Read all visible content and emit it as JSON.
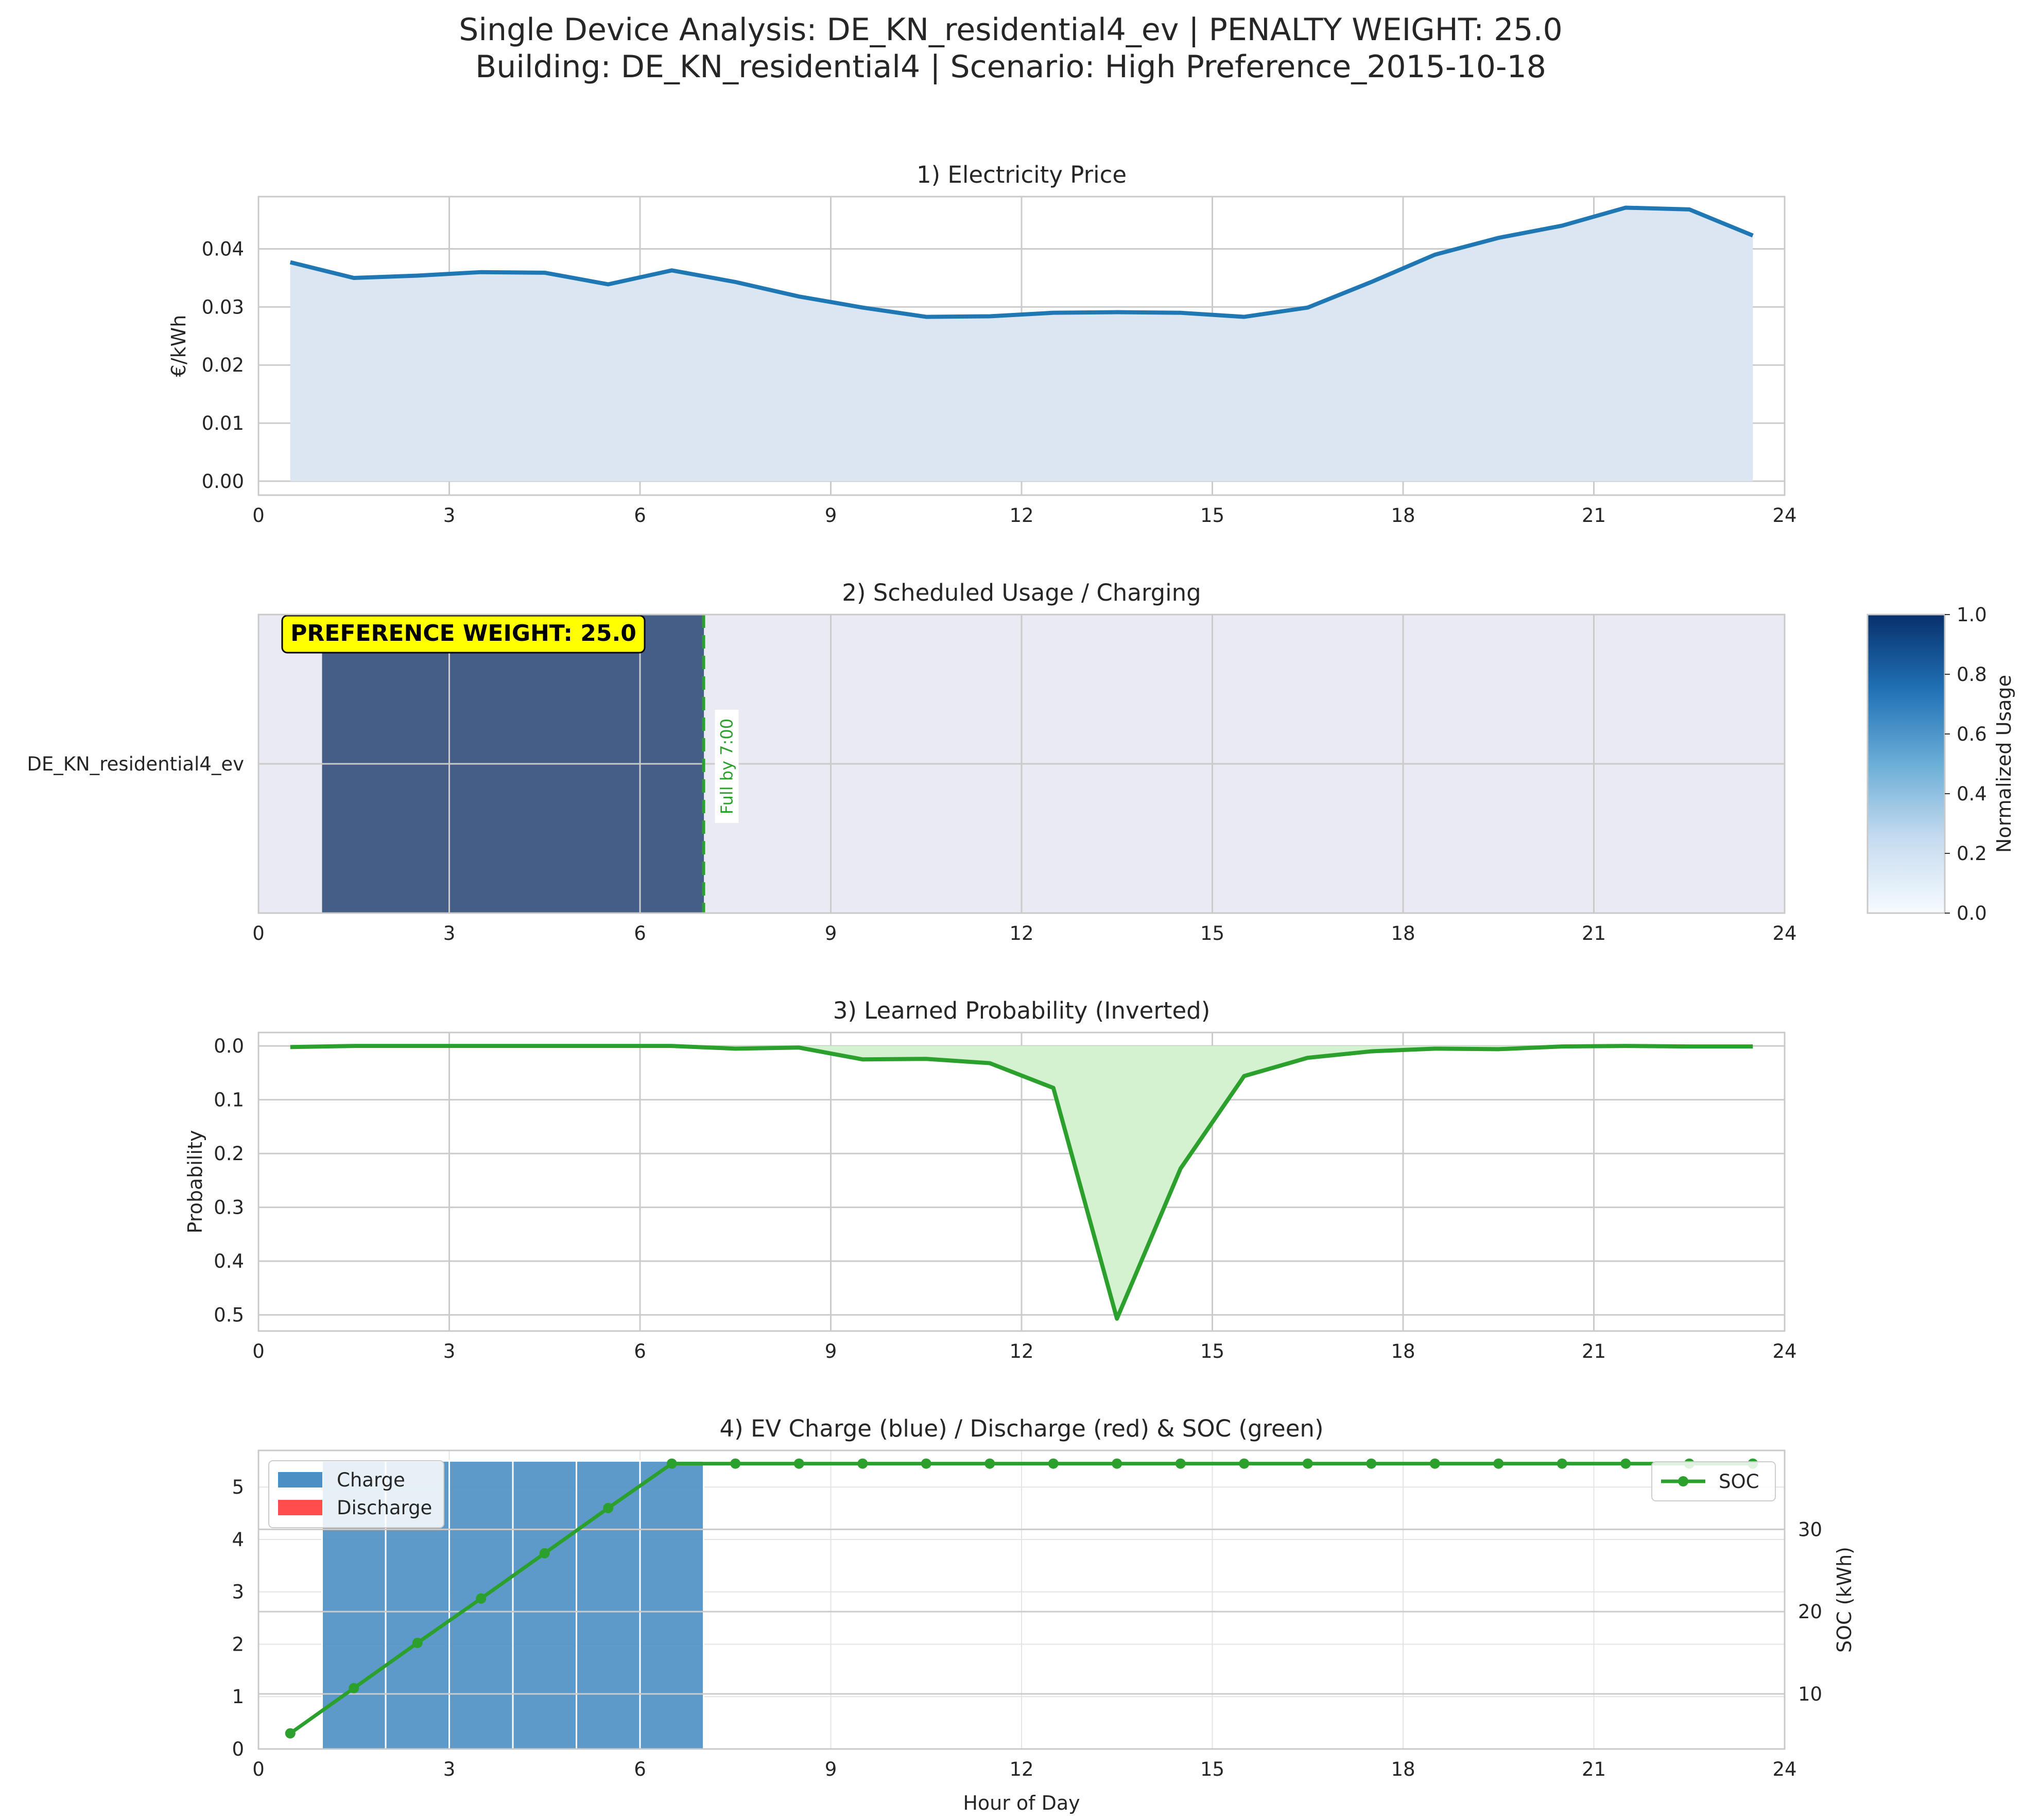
{
  "figure": {
    "title_line1": "Single Device Analysis: DE_KN_residential4_ev | PENALTY WEIGHT: 25.0",
    "title_line2": "Building: DE_KN_residential4 | Scenario: High Preference_2015-10-18"
  },
  "colors": {
    "price": "#1f77b4",
    "price_fill": "#dce6f2",
    "usage": "#445e87",
    "prob": "#2ca02c",
    "prob_fill": "#d4f1d0",
    "charge": "#4b8fc4",
    "discharge": "#ff4d4d",
    "soc": "#2ca02c",
    "panel_bg": "#eaeaf2",
    "badge_bg": "#ffff00"
  },
  "chart_data": [
    {
      "type": "area",
      "title": "1) Electricity Price",
      "xlabel": "",
      "ylabel": "€/kWh",
      "xlim": [
        0,
        24
      ],
      "ylim": [
        -0.0024,
        0.049
      ],
      "xticks": [
        "0",
        "3",
        "6",
        "9",
        "12",
        "15",
        "18",
        "21",
        "24"
      ],
      "yticks": [
        "0.00",
        "0.01",
        "0.02",
        "0.03",
        "0.04"
      ],
      "grid": true,
      "x": [
        0.5,
        1.5,
        2.5,
        3.5,
        4.5,
        5.5,
        6.5,
        7.5,
        8.5,
        9.5,
        10.5,
        11.5,
        12.5,
        13.5,
        14.5,
        15.5,
        16.5,
        17.5,
        18.5,
        19.5,
        20.5,
        21.5,
        22.5,
        23.5
      ],
      "values": [
        0.0377,
        0.035,
        0.0354,
        0.036,
        0.0359,
        0.0339,
        0.0363,
        0.0343,
        0.0318,
        0.0299,
        0.0283,
        0.0284,
        0.029,
        0.0291,
        0.029,
        0.0283,
        0.0299,
        0.0343,
        0.039,
        0.0419,
        0.044,
        0.0471,
        0.0468,
        0.0423
      ]
    },
    {
      "type": "heatmap",
      "title": "2) Scheduled Usage / Charging",
      "xlim": [
        0,
        24
      ],
      "xticks": [
        "0",
        "3",
        "6",
        "9",
        "12",
        "15",
        "18",
        "21",
        "24"
      ],
      "row_label": "DE_KN_residential4_ev",
      "grid": true,
      "x": [
        0.5,
        1.5,
        2.5,
        3.5,
        4.5,
        5.5,
        6.5,
        7.5,
        8.5,
        9.5,
        10.5,
        11.5,
        12.5,
        13.5,
        14.5,
        15.5,
        16.5,
        17.5,
        18.5,
        19.5,
        20.5,
        21.5,
        22.5,
        23.5
      ],
      "values": [
        0,
        0.8,
        0.8,
        0.8,
        0.8,
        0.8,
        0.8,
        0,
        0,
        0,
        0,
        0,
        0,
        0,
        0,
        0,
        0,
        0,
        0,
        0,
        0,
        0,
        0,
        0
      ],
      "badge": "PREFERENCE WEIGHT: 25.0",
      "deadline_hour": 7,
      "deadline_label": "Full by 7:00",
      "colorbar": {
        "label": "Normalized Usage",
        "range": [
          0,
          1
        ],
        "ticks": [
          "0.0",
          "0.2",
          "0.4",
          "0.6",
          "0.8",
          "1.0"
        ]
      }
    },
    {
      "type": "area",
      "title": "3) Learned Probability (Inverted)",
      "xlabel": "",
      "ylabel": "Probability",
      "xlim": [
        0,
        24
      ],
      "ylim": [
        0.53,
        -0.025
      ],
      "inverted_y": true,
      "xticks": [
        "0",
        "3",
        "6",
        "9",
        "12",
        "15",
        "18",
        "21",
        "24"
      ],
      "yticks": [
        "0.0",
        "0.1",
        "0.2",
        "0.3",
        "0.4",
        "0.5"
      ],
      "grid": true,
      "x": [
        0.5,
        1.5,
        2.5,
        3.5,
        4.5,
        5.5,
        6.5,
        7.5,
        8.5,
        9.5,
        10.5,
        11.5,
        12.5,
        13.5,
        14.5,
        15.5,
        16.5,
        17.5,
        18.5,
        19.5,
        20.5,
        21.5,
        22.5,
        23.5
      ],
      "values": [
        0.002,
        0.0,
        0.0,
        0.0,
        0.0,
        0.0,
        0.0,
        0.005,
        0.003,
        0.025,
        0.024,
        0.032,
        0.078,
        0.507,
        0.228,
        0.056,
        0.022,
        0.01,
        0.005,
        0.006,
        0.001,
        0.0,
        0.001,
        0.001
      ]
    },
    {
      "type": "bar",
      "title": "4) EV Charge (blue) / Discharge (red) & SOC (green)",
      "xlabel": "Hour of Day",
      "ylabel": "",
      "y2label": "SOC (kWh)",
      "xlim": [
        0,
        24
      ],
      "ylim": [
        0,
        5.7
      ],
      "y2lim": [
        3.3,
        39.6
      ],
      "xticks": [
        "0",
        "3",
        "6",
        "9",
        "12",
        "15",
        "18",
        "21",
        "24"
      ],
      "yticks": [
        "0",
        "1",
        "2",
        "3",
        "4",
        "5"
      ],
      "y2ticks": [
        "10",
        "20",
        "30"
      ],
      "grid": true,
      "legend_left": {
        "position": "upper-left",
        "items": [
          "Charge",
          "Discharge"
        ]
      },
      "legend_right": {
        "position": "upper-right",
        "items": [
          "SOC"
        ]
      },
      "x": [
        0.5,
        1.5,
        2.5,
        3.5,
        4.5,
        5.5,
        6.5,
        7.5,
        8.5,
        9.5,
        10.5,
        11.5,
        12.5,
        13.5,
        14.5,
        15.5,
        16.5,
        17.5,
        18.5,
        19.5,
        20.5,
        21.5,
        22.5,
        23.5
      ],
      "series": [
        {
          "name": "Charge",
          "values": [
            0,
            5.5,
            5.5,
            5.5,
            5.5,
            5.5,
            5.5,
            0,
            0,
            0,
            0,
            0,
            0,
            0,
            0,
            0,
            0,
            0,
            0,
            0,
            0,
            0,
            0,
            0
          ]
        },
        {
          "name": "Discharge",
          "values": [
            0,
            0,
            0,
            0,
            0,
            0,
            0,
            0,
            0,
            0,
            0,
            0,
            0,
            0,
            0,
            0,
            0,
            0,
            0,
            0,
            0,
            0,
            0,
            0
          ]
        },
        {
          "name": "SOC",
          "axis": "y2",
          "values": [
            5.2,
            10.7,
            16.2,
            21.6,
            27.1,
            32.6,
            38.0,
            38.0,
            38.0,
            38.0,
            38.0,
            38.0,
            38.0,
            38.0,
            38.0,
            38.0,
            38.0,
            38.0,
            38.0,
            38.0,
            38.0,
            38.0,
            38.0,
            38.0
          ]
        }
      ]
    }
  ]
}
